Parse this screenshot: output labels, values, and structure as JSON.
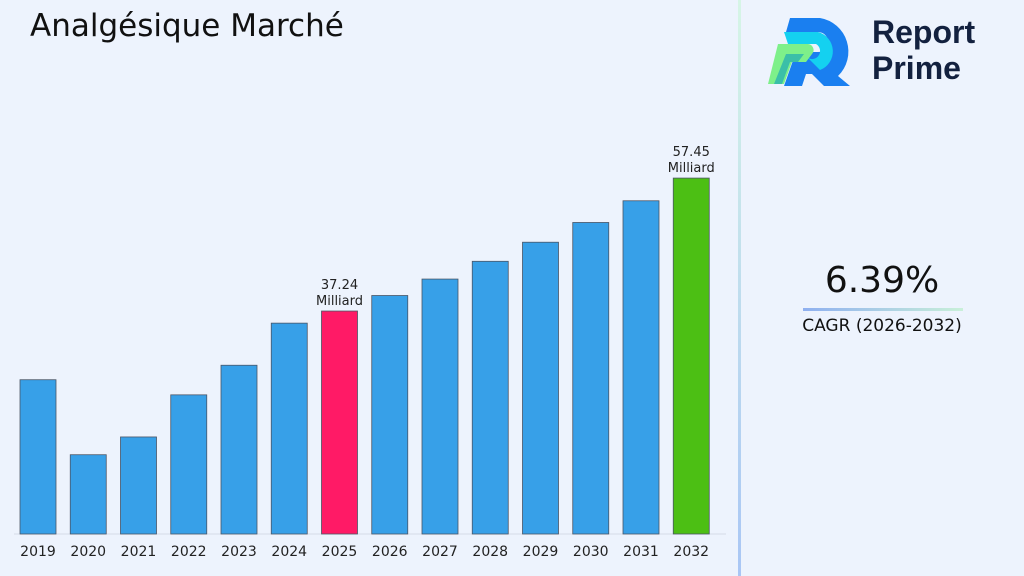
{
  "title": "Analgésique Marché",
  "brand": {
    "line1": "Report",
    "line2": "Prime"
  },
  "cagr": {
    "value": "6.39%",
    "label": "CAGR (2026-2032)"
  },
  "chart_data": {
    "type": "bar",
    "title": "Analgésique Marché",
    "xlabel": "",
    "ylabel": "",
    "categories": [
      "2019",
      "2020",
      "2021",
      "2022",
      "2023",
      "2024",
      "2025",
      "2026",
      "2027",
      "2028",
      "2029",
      "2030",
      "2031",
      "2032"
    ],
    "values": [
      26.8,
      15.4,
      18.1,
      24.5,
      29.0,
      35.4,
      37.24,
      39.6,
      42.1,
      44.8,
      47.7,
      50.7,
      54.0,
      57.45
    ],
    "colors": {
      "default": "#37a0e8",
      "highlight_2025": "#ff1a66",
      "highlight_2032": "#4cbf14"
    },
    "data_labels": {
      "2025": [
        "37.24",
        "Milliard"
      ],
      "2032": [
        "57.45",
        "Milliard"
      ]
    },
    "grid": false,
    "legend": "none"
  }
}
